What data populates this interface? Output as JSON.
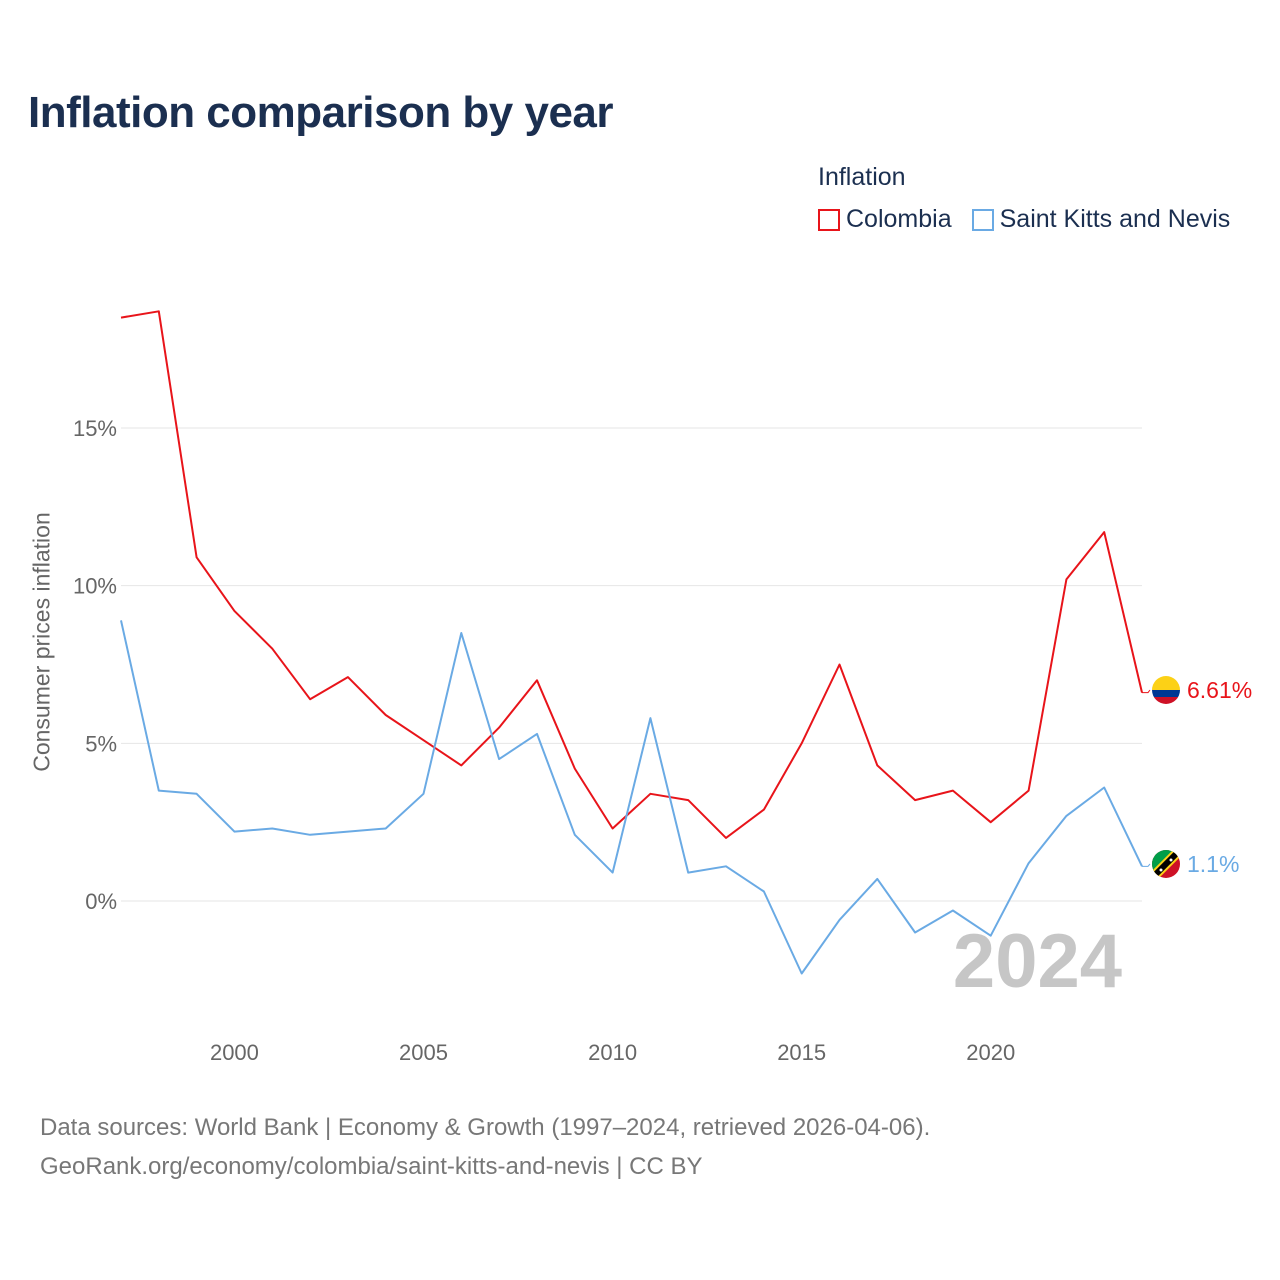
{
  "title": "Inflation comparison by year",
  "legend": {
    "title": "Inflation",
    "items": [
      {
        "label": "Colombia",
        "color": "#e8141a"
      },
      {
        "label": "Saint Kitts and Nevis",
        "color": "#6aaae4"
      }
    ]
  },
  "watermark_year": "2024",
  "source": {
    "line1": "Data sources: World Bank | Economy & Growth (1997–2024, retrieved 2026-04-06).",
    "line2": "GeoRank.org/economy/colombia/saint-kitts-and-nevis | CC BY"
  },
  "chart_data": {
    "type": "line",
    "title": "Inflation comparison by year",
    "xlabel": "",
    "ylabel": "Consumer prices inflation",
    "xlim": [
      1997,
      2024
    ],
    "ylim": [
      -3.5,
      19
    ],
    "x_ticks": [
      2000,
      2005,
      2010,
      2015,
      2020
    ],
    "x_tick_labels": [
      "2000",
      "2005",
      "2010",
      "2015",
      "2020"
    ],
    "y_ticks": [
      0,
      5,
      10,
      15
    ],
    "y_tick_labels": [
      "0%",
      "5%",
      "10%",
      "15%"
    ],
    "grid": true,
    "legend_position": "top-right",
    "x": [
      1997,
      1998,
      1999,
      2000,
      2001,
      2002,
      2003,
      2004,
      2005,
      2006,
      2007,
      2008,
      2009,
      2010,
      2011,
      2012,
      2013,
      2014,
      2015,
      2016,
      2017,
      2018,
      2019,
      2020,
      2021,
      2022,
      2023,
      2024
    ],
    "series": [
      {
        "name": "Colombia",
        "color": "#e8141a",
        "values": [
          18.5,
          18.7,
          10.9,
          9.2,
          8.0,
          6.4,
          7.1,
          5.9,
          5.1,
          4.3,
          5.5,
          7.0,
          4.2,
          2.3,
          3.4,
          3.2,
          2.0,
          2.9,
          5.0,
          7.5,
          4.3,
          3.2,
          3.5,
          2.5,
          3.5,
          10.2,
          11.7,
          6.61
        ],
        "end_label": "6.61%"
      },
      {
        "name": "Saint Kitts and Nevis",
        "color": "#6aaae4",
        "values": [
          8.9,
          3.5,
          3.4,
          2.2,
          2.3,
          2.1,
          2.2,
          2.3,
          3.4,
          8.5,
          4.5,
          5.3,
          2.1,
          0.9,
          5.8,
          0.9,
          1.1,
          0.3,
          -2.3,
          -0.6,
          0.7,
          -1.0,
          -0.3,
          -1.1,
          1.2,
          2.7,
          3.6,
          1.1
        ],
        "end_label": "1.1%"
      }
    ]
  }
}
